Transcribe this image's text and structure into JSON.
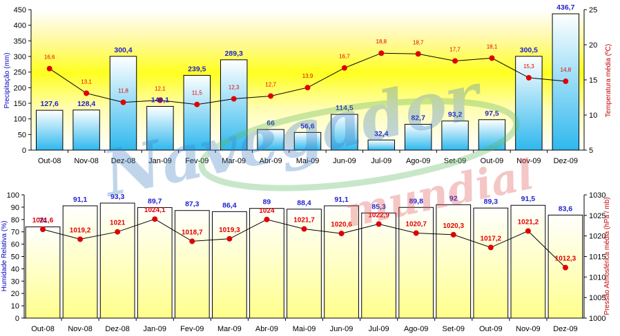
{
  "watermark": {
    "line1": "Navegador",
    "line2": "mundial"
  },
  "colors": {
    "bar_stroke": "#000000",
    "bar_top": "#ffffff",
    "bar_bottom": "#33bbee",
    "bar2_top": "#ffffff",
    "bar2_bottom": "#ffff99",
    "line": "#000000",
    "marker": "#e00000",
    "bar_label": "#1f1fcf",
    "line_label": "#e00000",
    "left_axis_title": "#0000c0",
    "right_axis_title": "#c00000"
  },
  "chart_data": [
    {
      "type": "bar",
      "categories": [
        "Out-08",
        "Nov-08",
        "Dez-08",
        "Jan-09",
        "Fev-09",
        "Mar-09",
        "Abr-09",
        "Mai-09",
        "Jun-09",
        "Jul-09",
        "Ago-09",
        "Set-09",
        "Out-09",
        "Nov-09",
        "Dez-09"
      ],
      "series": [
        {
          "name": "",
          "axis": "left",
          "kind": "bar",
          "values": [
            127.6,
            128.4,
            300.4,
            140.1,
            239.5,
            289.3,
            66,
            56.6,
            114.5,
            32.4,
            82.7,
            93.2,
            97.5,
            300.5,
            436.7
          ],
          "labels": [
            "127,6",
            "128,4",
            "300,4",
            "140,1",
            "239,5",
            "289,3",
            "66",
            "56,6",
            "114,5",
            "32,4",
            "82,7",
            "93,2",
            "97,5",
            "300,5",
            "436,7"
          ]
        },
        {
          "name": "",
          "axis": "right",
          "kind": "line",
          "values": [
            16.6,
            13.1,
            11.8,
            12.1,
            11.5,
            12.3,
            12.7,
            13.9,
            16.7,
            18.8,
            18.7,
            17.7,
            18.1,
            15.3,
            14.8
          ],
          "labels": [
            "16,6",
            "13,1",
            "11,8",
            "12,1",
            "11,5",
            "12,3",
            "12,7",
            "13,9",
            "16,7",
            "18,8",
            "18,7",
            "17,7",
            "18,1",
            "15,3",
            "14,8"
          ]
        }
      ],
      "ylabel": "Precipitação (mm)",
      "y2label": "Temperatura média (ºC)",
      "ylim": [
        0,
        450
      ],
      "y2lim": [
        5,
        25
      ],
      "yticks": [
        "0",
        "50",
        "100",
        "150",
        "200",
        "250",
        "300",
        "350",
        "400",
        "450"
      ],
      "y2ticks": [
        "5",
        "10",
        "15",
        "20",
        "25"
      ],
      "background": "yellow band (gradient white-yellow-white)",
      "grid": false
    },
    {
      "type": "bar",
      "categories": [
        "Out-08",
        "Nov-08",
        "Dez-08",
        "Jan-09",
        "Fev-09",
        "Mar-09",
        "Abr-09",
        "Mai-09",
        "Jun-09",
        "Jul-09",
        "Ago-09",
        "Set-09",
        "Out-09",
        "Nov-09",
        "Dez-09"
      ],
      "series": [
        {
          "name": "",
          "axis": "left",
          "kind": "bar",
          "values": [
            74,
            91.1,
            93.3,
            89.7,
            87.3,
            86.4,
            89,
            88.4,
            91.1,
            85.3,
            89.8,
            92,
            89.3,
            91.5,
            83.6
          ],
          "labels": [
            "74",
            "91,1",
            "93,3",
            "89,7",
            "87,3",
            "86,4",
            "89",
            "88,4",
            "91,1",
            "85,3",
            "89,8",
            "92",
            "89,3",
            "91,5",
            "83,6"
          ]
        },
        {
          "name": "",
          "axis": "right",
          "kind": "line",
          "values": [
            1021.6,
            1019.2,
            1021,
            1024.1,
            1018.7,
            1019.3,
            1024,
            1021.7,
            1020.6,
            1022.9,
            1020.7,
            1020.3,
            1017.2,
            1021.2,
            1012.3
          ],
          "labels": [
            "1021,6",
            "1019,2",
            "1021",
            "1024,1",
            "1018,7",
            "1019,3",
            "1024",
            "1021,7",
            "1020,6",
            "1022,9",
            "1020,7",
            "1020,3",
            "1017,2",
            "1021,2",
            "1012,3"
          ]
        }
      ],
      "ylabel": "Humidade Relativa (%)",
      "y2label": "Pressão Atmosférica média (hPa / mb)",
      "ylim": [
        0,
        100
      ],
      "y2lim": [
        1000,
        1030
      ],
      "yticks": [
        "0",
        "10",
        "20",
        "30",
        "40",
        "50",
        "60",
        "70",
        "80",
        "90",
        "100"
      ],
      "y2ticks": [
        "1000",
        "1005",
        "1010",
        "1015",
        "1020",
        "1025",
        "1030"
      ],
      "grid": false
    }
  ]
}
